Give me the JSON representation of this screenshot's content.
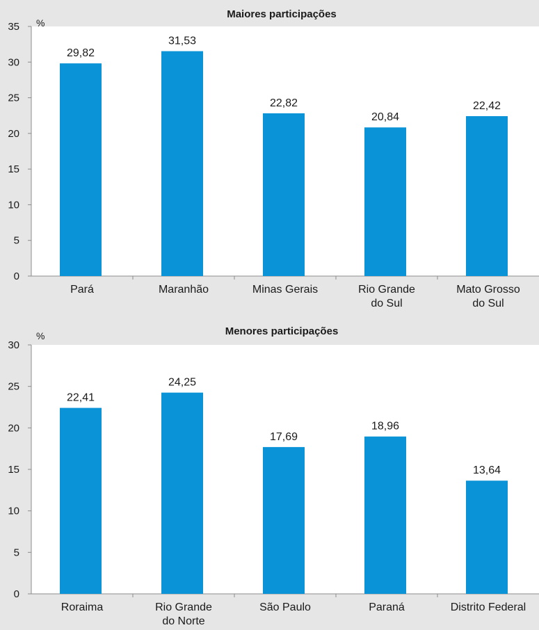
{
  "chart_data": [
    {
      "type": "bar",
      "title": "Maiores participações",
      "ylabel": "%",
      "ylim": [
        0,
        35
      ],
      "yticks": [
        0,
        5,
        10,
        15,
        20,
        25,
        30,
        35
      ],
      "grid": false,
      "categories": [
        [
          "Pará"
        ],
        [
          "Maranhão"
        ],
        [
          "Minas Gerais"
        ],
        [
          "Rio Grande",
          "do Sul"
        ],
        [
          "Mato Grosso",
          "do Sul"
        ]
      ],
      "values": [
        29.82,
        31.53,
        22.82,
        20.84,
        22.42
      ],
      "value_labels": [
        "29,82",
        "31,53",
        "22,82",
        "20,84",
        "22,42"
      ],
      "colors": {
        "bar": "#0a93d6",
        "panel": "#e6e6e6",
        "plot_area": "#ffffff"
      }
    },
    {
      "type": "bar",
      "title": "Menores participações",
      "ylabel": "%",
      "ylim": [
        0,
        30
      ],
      "yticks": [
        0,
        5,
        10,
        15,
        20,
        25,
        30
      ],
      "grid": false,
      "categories": [
        [
          "Roraima"
        ],
        [
          "Rio Grande",
          "do Norte"
        ],
        [
          "São Paulo"
        ],
        [
          "Paraná"
        ],
        [
          "Distrito Federal"
        ]
      ],
      "values": [
        22.41,
        24.25,
        17.69,
        18.96,
        13.64
      ],
      "value_labels": [
        "22,41",
        "24,25",
        "17,69",
        "18,96",
        "13,64"
      ],
      "colors": {
        "bar": "#0a93d6",
        "panel": "#e6e6e6",
        "plot_area": "#ffffff"
      }
    }
  ]
}
